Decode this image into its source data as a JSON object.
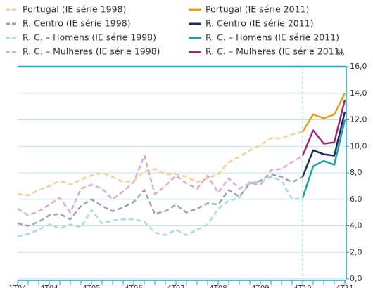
{
  "chart_data": {
    "type": "line",
    "y_axis_label": "%",
    "categories": [
      "1T04",
      null,
      null,
      "4T04",
      null,
      null,
      null,
      "4T05",
      null,
      null,
      null,
      "4T06",
      null,
      null,
      null,
      "4T07",
      null,
      null,
      null,
      "4T08",
      null,
      null,
      null,
      "4T09",
      null,
      null,
      null,
      "4T10",
      null,
      null,
      null,
      "4T11"
    ],
    "ylim": [
      0,
      16
    ],
    "yticks": [
      {
        "value": 0,
        "label": "0,0"
      },
      {
        "value": 2,
        "label": "2,0"
      },
      {
        "value": 4,
        "label": "4,0"
      },
      {
        "value": 6,
        "label": "6,0"
      },
      {
        "value": 8,
        "label": "8,0"
      },
      {
        "value": 10,
        "label": "10,0"
      },
      {
        "value": 12,
        "label": "12,0"
      },
      {
        "value": 14,
        "label": "14,0"
      },
      {
        "value": 16,
        "label": "16,0"
      }
    ],
    "grid": true,
    "series": [
      {
        "name": "Portugal (IE série 1998)",
        "color": "#f5cf9a",
        "dashed": true,
        "values": [
          6.4,
          6.3,
          6.7,
          7.0,
          7.4,
          7.1,
          7.5,
          7.8,
          8.0,
          7.7,
          7.3,
          7.4,
          8.1,
          8.3,
          7.9,
          7.9,
          7.7,
          7.3,
          7.6,
          7.9,
          8.8,
          9.2,
          9.7,
          10.1,
          10.6,
          10.6,
          10.9,
          11.1,
          null,
          null,
          null,
          null
        ]
      },
      {
        "name": "Portugal (IE série 2011)",
        "color": "#e0a21a",
        "dashed": false,
        "values": [
          null,
          null,
          null,
          null,
          null,
          null,
          null,
          null,
          null,
          null,
          null,
          null,
          null,
          null,
          null,
          null,
          null,
          null,
          null,
          null,
          null,
          null,
          null,
          null,
          null,
          null,
          null,
          11.1,
          12.4,
          12.1,
          12.4,
          14.0
        ]
      },
      {
        "name": "R.  Centro (IE série 1998)",
        "color": "#9aa3bd",
        "dashed": true,
        "values": [
          4.2,
          4.0,
          4.3,
          4.8,
          4.9,
          4.5,
          5.5,
          6.0,
          5.5,
          5.1,
          5.4,
          5.8,
          6.7,
          4.9,
          5.1,
          5.6,
          5.0,
          5.3,
          5.7,
          5.6,
          6.7,
          6.2,
          7.2,
          7.4,
          7.9,
          7.7,
          7.3,
          7.7,
          null,
          null,
          null,
          null
        ]
      },
      {
        "name": "R.  Centro (IE série 2011)",
        "color": "#1a2a5e",
        "dashed": false,
        "values": [
          null,
          null,
          null,
          null,
          null,
          null,
          null,
          null,
          null,
          null,
          null,
          null,
          null,
          null,
          null,
          null,
          null,
          null,
          null,
          null,
          null,
          null,
          null,
          null,
          null,
          null,
          null,
          7.7,
          9.7,
          9.4,
          9.3,
          12.6
        ]
      },
      {
        "name": "R. C. – Homens (IE série 1998)",
        "color": "#a9dcdc",
        "dashed": true,
        "values": [
          3.2,
          3.4,
          3.7,
          4.1,
          3.8,
          4.1,
          3.9,
          5.2,
          4.2,
          4.4,
          4.5,
          4.5,
          4.3,
          3.5,
          3.3,
          3.7,
          3.3,
          3.7,
          4.1,
          5.3,
          5.9,
          6.1,
          7.3,
          7.3,
          7.7,
          7.4,
          6.0,
          6.1,
          null,
          null,
          null,
          null
        ]
      },
      {
        "name": "R. C. – Homens (IE série 2011)",
        "color": "#1aa3a0",
        "dashed": false,
        "values": [
          null,
          null,
          null,
          null,
          null,
          null,
          null,
          null,
          null,
          null,
          null,
          null,
          null,
          null,
          null,
          null,
          null,
          null,
          null,
          null,
          null,
          null,
          null,
          null,
          null,
          null,
          null,
          6.1,
          8.5,
          8.9,
          8.6,
          12.0
        ]
      },
      {
        "name": "R. C. – Mulheres (IE série 1998)",
        "color": "#d9acd1",
        "dashed": true,
        "values": [
          5.3,
          4.8,
          5.1,
          5.6,
          6.1,
          5.0,
          6.8,
          7.1,
          6.8,
          6.0,
          6.6,
          7.3,
          9.3,
          6.4,
          7.0,
          7.8,
          7.2,
          6.8,
          7.8,
          6.5,
          7.6,
          6.8,
          7.2,
          7.1,
          8.2,
          8.3,
          8.8,
          9.3,
          null,
          null,
          null,
          null
        ]
      },
      {
        "name": "R. C. – Mulheres (IE série 2011)",
        "color": "#9e2a78",
        "dashed": false,
        "values": [
          null,
          null,
          null,
          null,
          null,
          null,
          null,
          null,
          null,
          null,
          null,
          null,
          null,
          null,
          null,
          null,
          null,
          null,
          null,
          null,
          null,
          null,
          null,
          null,
          null,
          null,
          null,
          9.3,
          11.2,
          10.2,
          10.3,
          13.5
        ]
      }
    ]
  }
}
